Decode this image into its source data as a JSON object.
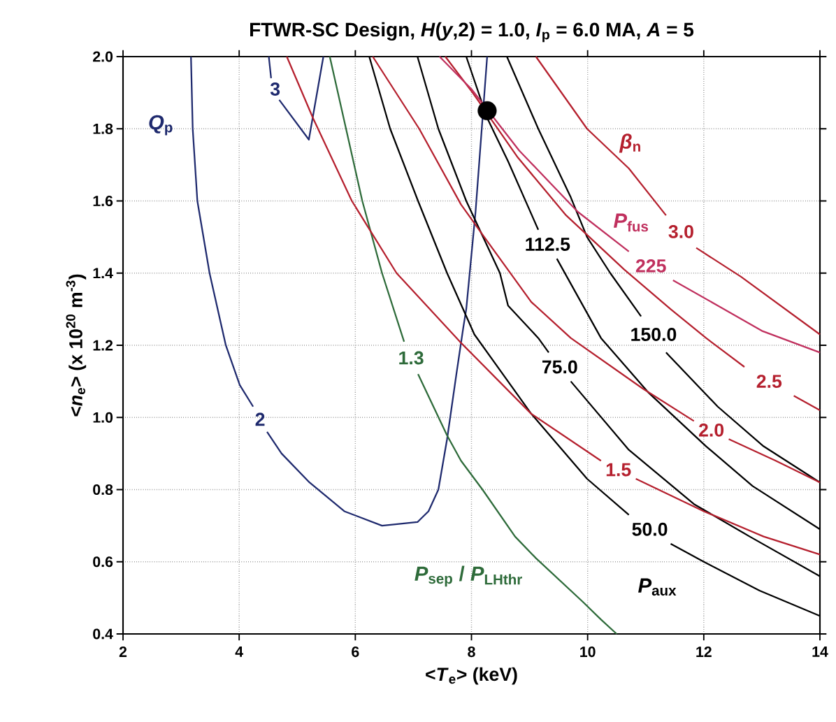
{
  "chart_data": {
    "type": "line",
    "title": "FTWR-SC Design, *H*(*y*,2) = 1.0, *I*$_{p}$ = 6.0 MA, *A* = 5",
    "xlabel": "<*T*$_{e}$> (keV)",
    "ylabel": "<*n*$_{e}$> (x 10$^{20}$ m$^{-3}$)",
    "xlim": [
      2,
      14
    ],
    "ylim": [
      0.4,
      2.0
    ],
    "xticks": [
      2,
      4,
      6,
      8,
      10,
      12,
      14
    ],
    "yticks": [
      {
        "value": 0.4,
        "label": "0.4"
      },
      {
        "value": 0.6,
        "label": "0.6"
      },
      {
        "value": 0.8,
        "label": "0.8"
      },
      {
        "value": 1.0,
        "label": "1.0"
      },
      {
        "value": 1.2,
        "label": "1.2"
      },
      {
        "value": 1.4,
        "label": "1.4"
      },
      {
        "value": 1.6,
        "label": "1.6"
      },
      {
        "value": 1.8,
        "label": "1.8"
      },
      {
        "value": 2.0,
        "label": "2.0"
      }
    ],
    "grid": true,
    "line_style": "solid",
    "series": [
      {
        "name": "2",
        "color": "#1f2a6e",
        "x": [
          3.17,
          3.2,
          3.28,
          3.49,
          3.7,
          3.77,
          4.01,
          4.24,
          4.36,
          4.48,
          4.73,
          5.21,
          5.81,
          6.46,
          7.07,
          7.26,
          7.43,
          7.58,
          7.74,
          7.86,
          7.91,
          8.07,
          8.27
        ],
        "values": [
          2.0,
          1.8,
          1.6,
          1.4,
          1.25,
          1.2,
          1.09,
          1.03,
          null,
          0.96,
          0.9,
          0.82,
          0.74,
          0.7,
          0.71,
          0.74,
          0.8,
          0.94,
          1.12,
          1.25,
          1.3,
          1.57,
          2.0
        ]
      },
      {
        "name": "3",
        "color": "#1f2a6e",
        "x": [
          4.51,
          4.55,
          4.62,
          4.69,
          5.2,
          5.45
        ],
        "values": [
          2.0,
          1.94,
          null,
          1.88,
          1.77,
          2.0
        ]
      },
      {
        "name": "1.3",
        "color": "#2e6b3a",
        "x": [
          5.56,
          5.84,
          6.12,
          6.46,
          6.84,
          6.95,
          7.08,
          7.58,
          7.82,
          8.19,
          8.75,
          9.11,
          9.91,
          10.23,
          10.5
        ],
        "values": [
          2.0,
          1.8,
          1.6,
          1.4,
          1.21,
          null,
          1.12,
          0.95,
          0.88,
          0.8,
          0.67,
          0.61,
          0.49,
          0.44,
          0.4
        ]
      },
      {
        "name": "50.0",
        "color": "#000000",
        "x": [
          6.24,
          6.6,
          7.08,
          7.58,
          8.05,
          9.03,
          9.99,
          10.71,
          11.0,
          11.43,
          12.0,
          12.96,
          14.0
        ],
        "values": [
          2.0,
          1.8,
          1.6,
          1.4,
          1.23,
          1.01,
          0.83,
          0.73,
          null,
          0.65,
          0.6,
          0.52,
          0.45
        ]
      },
      {
        "name": "75.0",
        "color": "#000000",
        "x": [
          7.07,
          7.43,
          7.91,
          8.49,
          8.63,
          9.15,
          9.33,
          9.5,
          9.71,
          10.71,
          11.83,
          12.79,
          14.0
        ],
        "values": [
          2.0,
          1.8,
          1.6,
          1.4,
          1.31,
          1.22,
          1.18,
          null,
          1.1,
          0.91,
          0.76,
          0.67,
          0.56
        ]
      },
      {
        "name": "112.5",
        "color": "#000000",
        "x": [
          7.91,
          8.27,
          8.63,
          9.15,
          9.3,
          9.47,
          10.23,
          11.04,
          12.04,
          12.84,
          14.0
        ],
        "values": [
          2.0,
          1.83,
          1.71,
          1.52,
          null,
          1.44,
          1.22,
          1.07,
          0.92,
          0.81,
          0.69
        ]
      },
      {
        "name": "150.0",
        "color": "#000000",
        "x": [
          8.61,
          9.15,
          9.71,
          9.99,
          10.39,
          10.92,
          11.1,
          11.35,
          12.24,
          13.03,
          14.0
        ],
        "values": [
          2.0,
          1.8,
          1.61,
          1.5,
          1.4,
          1.28,
          null,
          1.18,
          1.03,
          0.92,
          0.82
        ]
      },
      {
        "name": "1.5",
        "color": "#b5202e",
        "x": [
          4.82,
          5.27,
          5.94,
          6.71,
          7.8,
          9.03,
          10.23,
          10.5,
          10.83,
          12.0,
          13.03,
          14.0
        ],
        "values": [
          2.0,
          1.83,
          1.6,
          1.4,
          1.21,
          1.01,
          0.88,
          null,
          0.83,
          0.74,
          0.67,
          0.62
        ]
      },
      {
        "name": "2.0",
        "color": "#b5202e",
        "x": [
          6.3,
          7.1,
          7.82,
          8.22,
          9.03,
          9.71,
          10.95,
          11.83,
          12.1,
          12.43,
          13.24,
          14.0
        ],
        "values": [
          2.0,
          1.8,
          1.59,
          1.5,
          1.32,
          1.22,
          1.08,
          0.99,
          null,
          0.94,
          0.88,
          0.82
        ]
      },
      {
        "name": "2.5",
        "color": "#b5202e",
        "x": [
          7.55,
          8.02,
          8.8,
          9.63,
          10.63,
          11.43,
          12.04,
          12.7,
          13.1,
          13.55,
          14.0
        ],
        "values": [
          2.0,
          1.9,
          1.72,
          1.56,
          1.41,
          1.3,
          1.22,
          1.14,
          null,
          1.06,
          1.02
        ]
      },
      {
        "name": "3.0",
        "color": "#b5202e",
        "x": [
          9.11,
          9.99,
          10.71,
          11.35,
          11.6,
          11.87,
          12.64,
          14.0
        ],
        "values": [
          2.0,
          1.8,
          1.69,
          1.56,
          null,
          1.47,
          1.39,
          1.23
        ]
      },
      {
        "name": "225",
        "color": "#c0305e",
        "x": [
          7.45,
          8.0,
          8.82,
          9.83,
          10.71,
          11.1,
          11.47,
          12.24,
          13.0,
          14.0
        ],
        "values": [
          2.0,
          1.91,
          1.74,
          1.57,
          1.46,
          null,
          1.38,
          1.31,
          1.24,
          1.18
        ]
      },
      {
        "type": "scatter",
        "color": "#000000",
        "x": [
          8.27
        ],
        "values": [
          1.85
        ]
      }
    ],
    "annotations": [
      "*Q*$_{p}$",
      "*β*$_{n}$",
      "*P*$_{fus}$",
      "*P*$_{aux}$",
      "*P*$_{sep}$ / *P*$_{LHthr}$"
    ]
  }
}
